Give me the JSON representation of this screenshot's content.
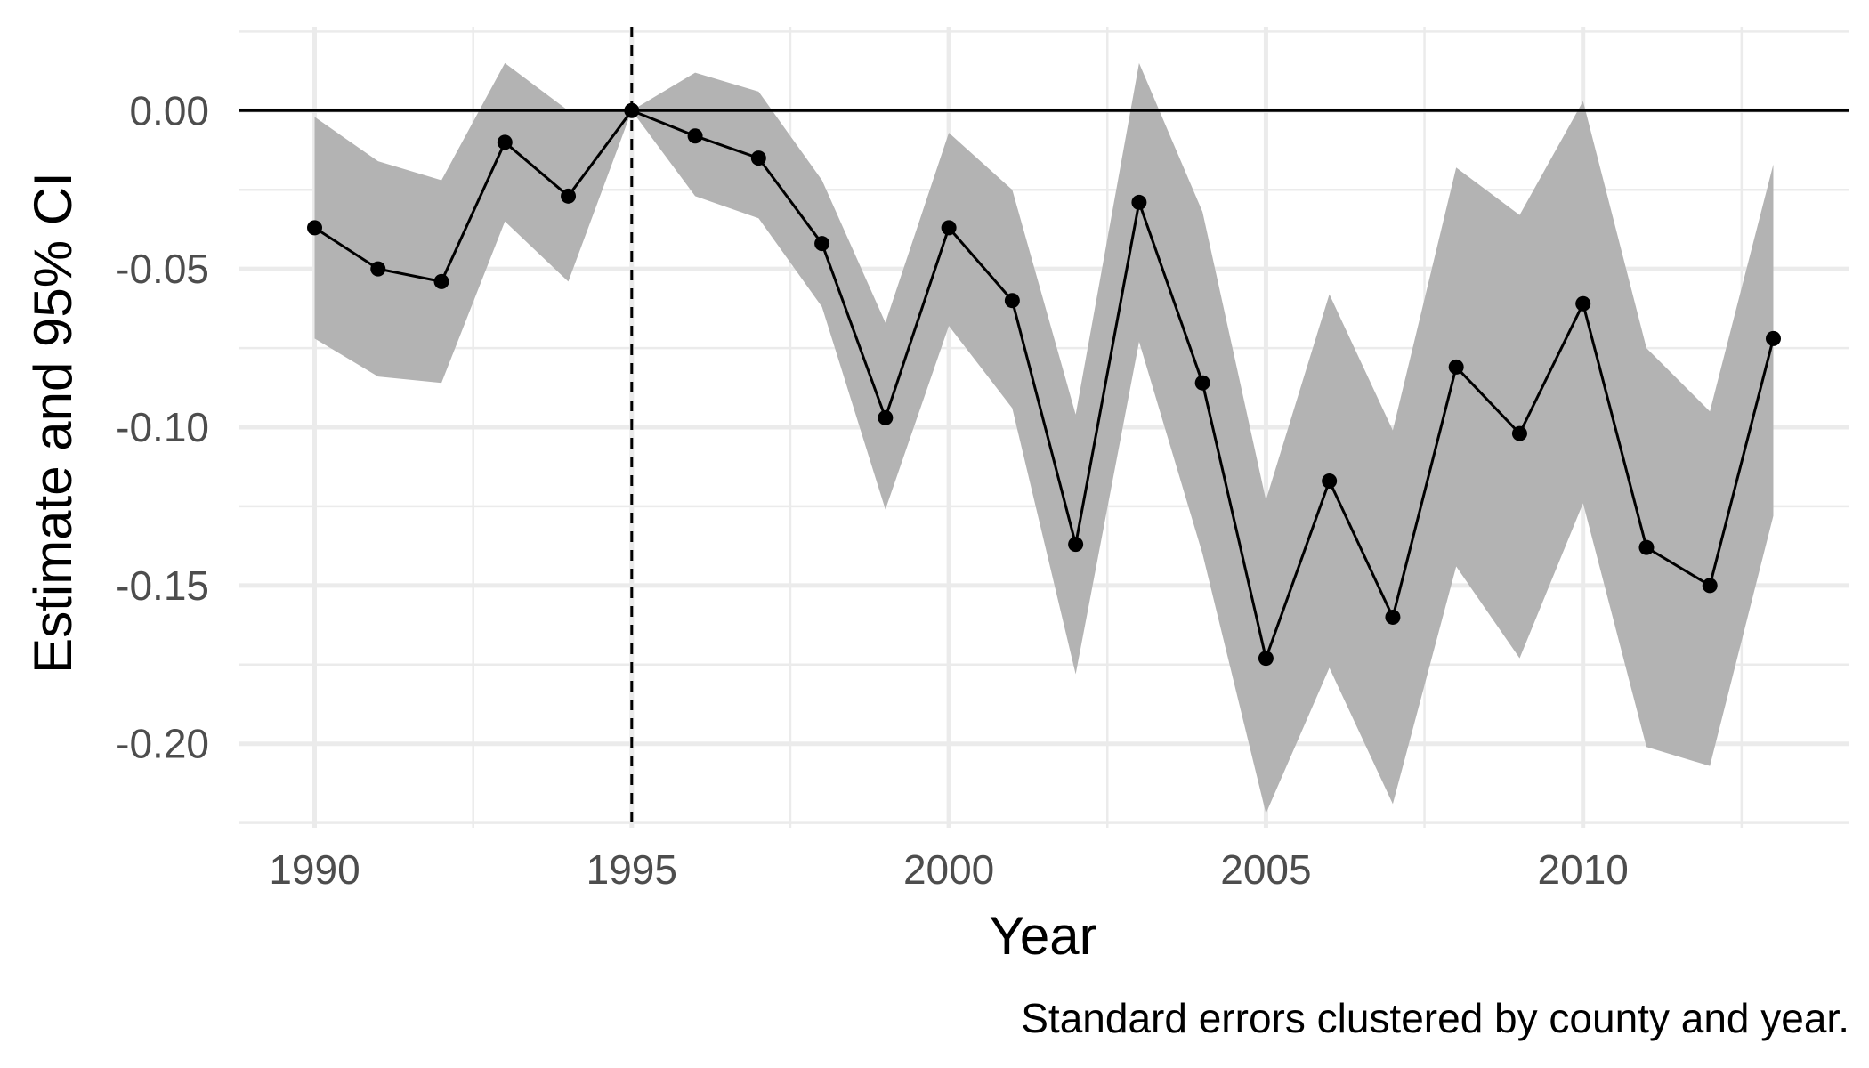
{
  "chart_data": {
    "type": "line",
    "title": "",
    "xlabel": "Year",
    "ylabel": "Estimate and 95% CI",
    "caption": "Standard errors clustered by county and year.",
    "xlim": [
      1988.8,
      2014.2
    ],
    "ylim": [
      -0.2265,
      0.0265
    ],
    "x_ticks": [
      1990,
      1995,
      2000,
      2005,
      2010
    ],
    "x_tick_labels": [
      "1990",
      "1995",
      "2000",
      "2005",
      "2010"
    ],
    "x_minor_ticks": [
      1992.5,
      1997.5,
      2002.5,
      2007.5,
      2012.5
    ],
    "y_ticks": [
      0.0,
      -0.05,
      -0.1,
      -0.15,
      -0.2
    ],
    "y_tick_labels": [
      "0.00",
      "-0.05",
      "-0.10",
      "-0.15",
      "-0.20"
    ],
    "y_minor_ticks": [
      0.025,
      -0.025,
      -0.075,
      -0.125,
      -0.175,
      -0.225
    ],
    "grid": true,
    "reference_hline": 0,
    "reference_vline": 1995,
    "colors": {
      "line": "#000000",
      "band": "#b3b3b3",
      "grid": "#ebebeb",
      "tick_text": "#4d4d4d"
    },
    "x": [
      1990,
      1991,
      1992,
      1993,
      1994,
      1995,
      1996,
      1997,
      1998,
      1999,
      2000,
      2001,
      2002,
      2003,
      2004,
      2005,
      2006,
      2007,
      2008,
      2009,
      2010,
      2011,
      2012,
      2013
    ],
    "series": [
      {
        "estimate": [
          -0.037,
          -0.05,
          -0.054,
          -0.01,
          -0.027,
          0.0,
          -0.008,
          -0.015,
          -0.042,
          -0.097,
          -0.037,
          -0.06,
          -0.137,
          -0.029,
          -0.086,
          -0.173,
          -0.117,
          -0.16,
          -0.081,
          -0.102,
          -0.061,
          -0.138,
          -0.15,
          -0.072
        ],
        "lower": [
          -0.072,
          -0.084,
          -0.086,
          -0.035,
          -0.054,
          0.0,
          -0.027,
          -0.034,
          -0.062,
          -0.126,
          -0.068,
          -0.094,
          -0.178,
          -0.073,
          -0.14,
          -0.222,
          -0.176,
          -0.219,
          -0.144,
          -0.173,
          -0.124,
          -0.201,
          -0.207,
          -0.128
        ],
        "upper": [
          -0.002,
          -0.016,
          -0.022,
          0.015,
          0.0,
          0.0,
          0.012,
          0.006,
          -0.022,
          -0.067,
          -0.007,
          -0.025,
          -0.096,
          0.015,
          -0.032,
          -0.123,
          -0.058,
          -0.101,
          -0.018,
          -0.033,
          0.003,
          -0.075,
          -0.095,
          -0.017
        ]
      }
    ]
  }
}
